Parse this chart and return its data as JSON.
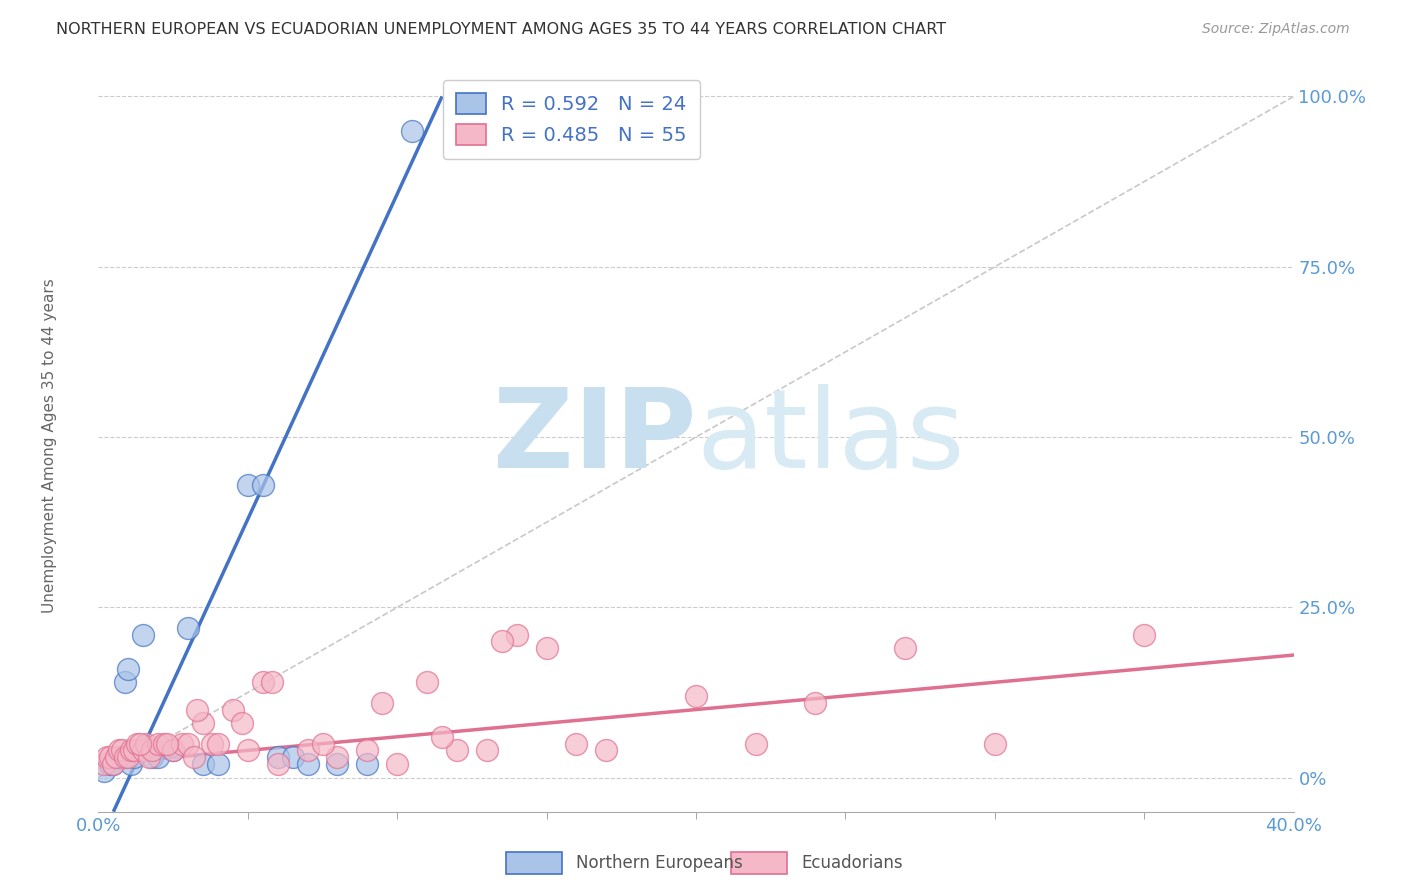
{
  "title": "NORTHERN EUROPEAN VS ECUADORIAN UNEMPLOYMENT AMONG AGES 35 TO 44 YEARS CORRELATION CHART",
  "source": "Source: ZipAtlas.com",
  "ylabel": "Unemployment Among Ages 35 to 44 years",
  "ylabel_tick_vals": [
    0,
    25,
    50,
    75,
    100
  ],
  "ylabel_tick_labels": [
    "0%",
    "25.0%",
    "50.0%",
    "75.0%",
    "100.0%"
  ],
  "xlim": [
    0,
    40
  ],
  "ylim": [
    -5,
    105
  ],
  "watermark": "ZIPatlas",
  "legend_entries": [
    {
      "label": "Northern Europeans",
      "R": "0.592",
      "N": "24",
      "color": "#5b9bd5",
      "marker_facecolor": "#a8c8f0"
    },
    {
      "label": "Ecuadorians",
      "R": "0.485",
      "N": "55",
      "color": "#e07090",
      "marker_facecolor": "#f4b8c8"
    }
  ],
  "blue_scatter_x": [
    0.2,
    0.4,
    0.5,
    0.6,
    0.8,
    0.9,
    1.0,
    1.1,
    1.2,
    1.5,
    1.8,
    2.0,
    2.5,
    3.0,
    3.5,
    4.0,
    5.0,
    5.5,
    6.0,
    6.5,
    7.0,
    8.0,
    9.0,
    10.5
  ],
  "blue_scatter_y": [
    1,
    2,
    2,
    3,
    3,
    14,
    16,
    2,
    3,
    21,
    3,
    3,
    4,
    22,
    2,
    2,
    43,
    43,
    3,
    3,
    2,
    2,
    2,
    95
  ],
  "pink_scatter_x": [
    0.2,
    0.3,
    0.4,
    0.5,
    0.6,
    0.7,
    0.8,
    0.9,
    1.0,
    1.1,
    1.2,
    1.3,
    1.5,
    1.6,
    1.7,
    1.8,
    2.0,
    2.2,
    2.5,
    2.8,
    3.0,
    3.2,
    3.5,
    3.8,
    4.0,
    4.5,
    5.0,
    5.5,
    6.0,
    7.0,
    8.0,
    9.0,
    10.0,
    11.0,
    12.0,
    13.0,
    14.0,
    15.0,
    17.0,
    20.0,
    22.0,
    24.0,
    27.0,
    30.0,
    35.0,
    1.4,
    2.3,
    3.3,
    4.8,
    5.8,
    7.5,
    9.5,
    11.5,
    13.5,
    16.0
  ],
  "pink_scatter_y": [
    2,
    3,
    3,
    2,
    3,
    4,
    4,
    3,
    3,
    4,
    4,
    5,
    4,
    5,
    3,
    4,
    5,
    5,
    4,
    5,
    5,
    3,
    8,
    5,
    5,
    10,
    4,
    14,
    2,
    4,
    3,
    4,
    2,
    14,
    4,
    4,
    21,
    19,
    4,
    12,
    5,
    11,
    19,
    5,
    21,
    5,
    5,
    10,
    8,
    14,
    5,
    11,
    6,
    20,
    5
  ],
  "blue_line_x": [
    0.5,
    11.5
  ],
  "blue_line_y": [
    -5,
    100
  ],
  "pink_line_x": [
    0,
    40
  ],
  "pink_line_y": [
    2,
    18
  ],
  "ref_line_x": [
    0,
    40
  ],
  "ref_line_y": [
    0,
    100
  ],
  "grid_color": "#cccccc",
  "bg_color": "#ffffff",
  "title_color": "#333333",
  "axis_label_color": "#5b9bd5",
  "watermark_color": "#d8eaf8",
  "blue_color": "#4472c4",
  "blue_marker_color": "#aac4e8",
  "pink_color": "#e07090",
  "pink_marker_color": "#f4b8c8"
}
